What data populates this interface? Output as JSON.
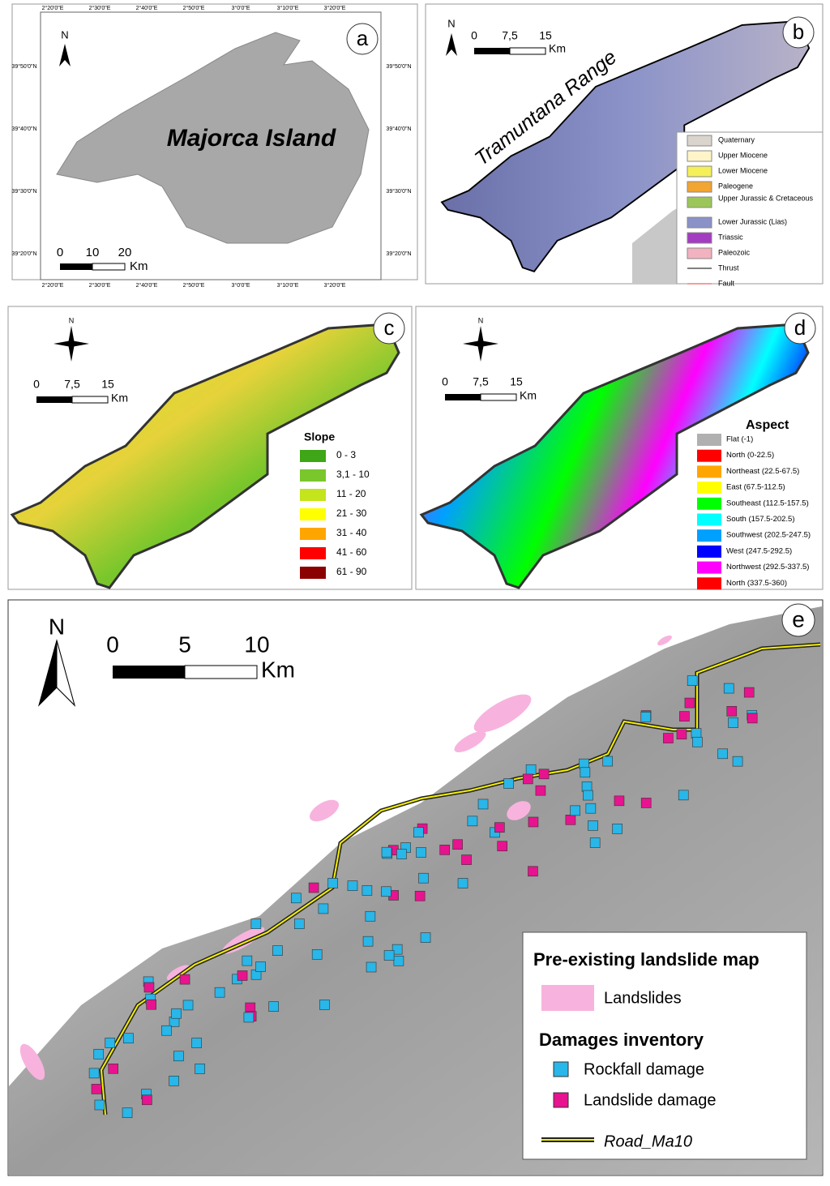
{
  "panels": {
    "a": {
      "label": "a",
      "title": "Majorca Island",
      "north": "N",
      "scale": [
        "0",
        "10",
        "20"
      ],
      "unit": "Km",
      "lon_labels": [
        "2°20'0\"E",
        "2°30'0\"E",
        "2°40'0\"E",
        "2°50'0\"E",
        "3°0'0\"E",
        "3°10'0\"E",
        "3°20'0\"E"
      ],
      "lat_labels": [
        "39°50'0\"N",
        "39°40'0\"N",
        "39°30'0\"N",
        "39°20'0\"N"
      ]
    },
    "b": {
      "label": "b",
      "title": "Tramuntana Range",
      "north": "N",
      "scale": [
        "0",
        "7,5",
        "15"
      ],
      "unit": "Km",
      "legend": [
        {
          "name": "Quaternary",
          "color": "#d9d4cc"
        },
        {
          "name": "Upper Miocene",
          "color": "#fff5c8"
        },
        {
          "name": "Lower Miocene",
          "color": "#f5ef5a"
        },
        {
          "name": "Paleogene",
          "color": "#f2a531"
        },
        {
          "name": "Upper Jurassic & Cretaceous",
          "color": "#9cc65a"
        },
        {
          "name": "Lower Jurassic (Lias)",
          "color": "#8a92c8"
        },
        {
          "name": "Triassic",
          "color": "#a33cc0"
        },
        {
          "name": "Paleozoic",
          "color": "#f3b2c0"
        },
        {
          "name": "Thrust",
          "color": "#000000"
        },
        {
          "name": "Fault",
          "color": "#e04040"
        }
      ]
    },
    "c": {
      "label": "c",
      "north": "N",
      "scale": [
        "0",
        "7,5",
        "15"
      ],
      "unit": "Km",
      "legend_title": "Slope",
      "legend": [
        {
          "name": "0 - 3",
          "color": "#3fa617"
        },
        {
          "name": "3,1 - 10",
          "color": "#7ac72c"
        },
        {
          "name": "11 - 20",
          "color": "#c4e41c"
        },
        {
          "name": "21 - 30",
          "color": "#ffff00"
        },
        {
          "name": "31 - 40",
          "color": "#ffa500"
        },
        {
          "name": "41 - 60",
          "color": "#ff0000"
        },
        {
          "name": "61 - 90",
          "color": "#8b0000"
        }
      ]
    },
    "d": {
      "label": "d",
      "north": "N",
      "scale": [
        "0",
        "7,5",
        "15"
      ],
      "unit": "Km",
      "legend_title": "Aspect",
      "legend": [
        {
          "name": "Flat (-1)",
          "color": "#b0b0b0"
        },
        {
          "name": "North (0-22.5)",
          "color": "#ff0000"
        },
        {
          "name": "Northeast (22.5-67.5)",
          "color": "#ffa500"
        },
        {
          "name": "East (67.5-112.5)",
          "color": "#ffff00"
        },
        {
          "name": "Southeast (112.5-157.5)",
          "color": "#00ff00"
        },
        {
          "name": "South (157.5-202.5)",
          "color": "#00ffff"
        },
        {
          "name": "Southwest (202.5-247.5)",
          "color": "#00a0ff"
        },
        {
          "name": "West (247.5-292.5)",
          "color": "#0000ff"
        },
        {
          "name": "Northwest (292.5-337.5)",
          "color": "#ff00ff"
        },
        {
          "name": "North (337.5-360)",
          "color": "#ff0000"
        }
      ]
    },
    "e": {
      "label": "e",
      "north": "N",
      "scale": [
        "0",
        "5",
        "10"
      ],
      "unit": "Km",
      "legend_title": "Pre-existing landslide map",
      "landslides": "Landslides",
      "inventory_title": "Damages inventory",
      "rockfall": "Rockfall damage",
      "landslide": "Landslide damage",
      "road": "Road_Ma10",
      "rockfall_color": "#29b6e8",
      "landslide_color": "#e8138f",
      "landslide_area_color": "#f7b3dd"
    }
  }
}
